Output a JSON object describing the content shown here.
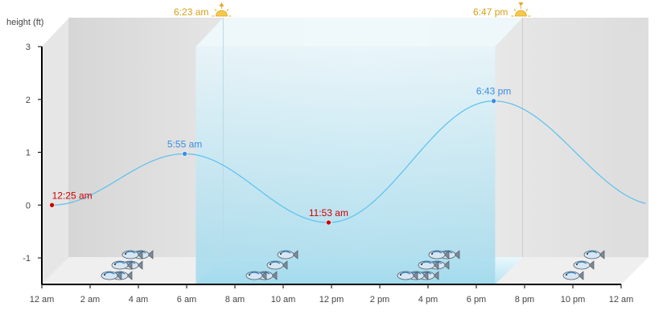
{
  "chart_data": {
    "type": "line",
    "ylabel": "height (ft)",
    "ylim": [
      -1.5,
      3
    ],
    "y_ticks": [
      -1,
      0,
      1,
      2,
      3
    ],
    "xlim": [
      0,
      24
    ],
    "x_ticks": [
      {
        "hour": 0,
        "label": "12 am"
      },
      {
        "hour": 2,
        "label": "2 am"
      },
      {
        "hour": 4,
        "label": "4 am"
      },
      {
        "hour": 6,
        "label": "6 am"
      },
      {
        "hour": 8,
        "label": "8 am"
      },
      {
        "hour": 10,
        "label": "10 am"
      },
      {
        "hour": 12,
        "label": "12 pm"
      },
      {
        "hour": 14,
        "label": "2 pm"
      },
      {
        "hour": 16,
        "label": "4 pm"
      },
      {
        "hour": 18,
        "label": "6 pm"
      },
      {
        "hour": 20,
        "label": "8 pm"
      },
      {
        "hour": 22,
        "label": "10 pm"
      },
      {
        "hour": 24,
        "label": "12 am"
      }
    ],
    "tide_extremes": [
      {
        "hour": 0.42,
        "height": 0.0,
        "label": "12:25 am",
        "kind": "low"
      },
      {
        "hour": 5.92,
        "height": 0.97,
        "label": "5:55 am",
        "kind": "high"
      },
      {
        "hour": 11.88,
        "height": -0.33,
        "label": "11:53 am",
        "kind": "low"
      },
      {
        "hour": 18.72,
        "height": 1.97,
        "label": "6:43 pm",
        "kind": "high"
      }
    ],
    "end_height": 0.0,
    "sunrise": {
      "hour": 6.38,
      "label": "6:23 am"
    },
    "sunset": {
      "hour": 18.78,
      "label": "6:47 pm"
    },
    "fish_activity": [
      {
        "hour": 3.5,
        "level": 6
      },
      {
        "hour": 9.5,
        "level": 4
      },
      {
        "hour": 16.2,
        "level": 7
      },
      {
        "hour": 22.2,
        "level": 3
      }
    ],
    "colors": {
      "tide_line": "#5bc0ef",
      "high_marker": "#3a8ee6",
      "low_marker": "#cc0000",
      "high_label": "#3a8ee6",
      "low_label": "#cc0000",
      "sun_label": "#d4a017",
      "daylight": "#c4e9f5",
      "night": "#e2e2e2"
    }
  }
}
